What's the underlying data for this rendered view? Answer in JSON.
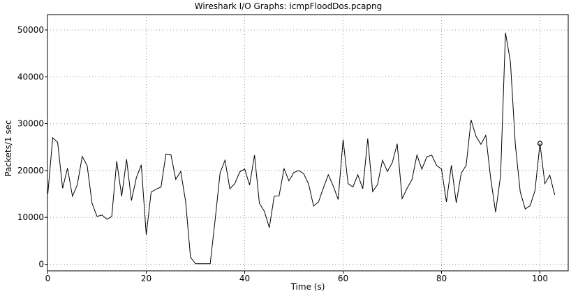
{
  "chart_data": {
    "type": "line",
    "title": "Wireshark I/O Graphs: icmpFloodDos.pcapng",
    "xlabel": "Time (s)",
    "ylabel": "Packets/1 sec",
    "xlim": [
      0,
      104
    ],
    "ylim": [
      0,
      51000
    ],
    "xticks": [
      0,
      20,
      40,
      60,
      80,
      100
    ],
    "yticks": [
      0,
      10000,
      20000,
      30000,
      40000,
      50000
    ],
    "xtick_labels": [
      "0",
      "20",
      "40",
      "60",
      "80",
      "100"
    ],
    "ytick_labels": [
      "0",
      "10000",
      "20000",
      "30000",
      "40000",
      "50000"
    ],
    "grid": true,
    "line_color": "#000000",
    "series": [
      {
        "x": [
          0,
          1,
          2,
          3,
          4,
          5,
          6,
          7,
          8,
          9,
          10,
          11,
          12,
          13,
          14,
          15,
          16,
          17,
          18,
          19,
          20,
          21,
          22,
          23,
          24,
          25,
          26,
          27,
          28,
          29,
          30,
          31,
          32,
          33,
          34,
          35,
          36,
          37,
          38,
          39,
          40,
          41,
          42,
          43,
          44,
          45,
          46,
          47,
          48,
          49,
          50,
          51,
          52,
          53,
          54,
          55,
          56,
          57,
          58,
          59,
          60,
          61,
          62,
          63,
          64,
          65,
          66,
          67,
          68,
          69,
          70,
          71,
          72,
          73,
          74,
          75,
          76,
          77,
          78,
          79,
          80,
          81,
          82,
          83,
          84,
          85,
          86,
          87,
          88,
          89,
          90,
          91,
          92,
          93,
          94,
          95,
          96,
          97,
          98,
          99,
          100,
          101,
          102,
          103
        ],
        "values": [
          15000,
          27000,
          26000,
          16200,
          20500,
          14500,
          17000,
          23000,
          21000,
          13000,
          10200,
          10500,
          9600,
          10200,
          22000,
          14500,
          22400,
          13600,
          18500,
          21200,
          6300,
          15400,
          16000,
          16500,
          23500,
          23400,
          18100,
          19800,
          13400,
          1500,
          100,
          100,
          100,
          100,
          9500,
          19500,
          22200,
          16100,
          17200,
          19700,
          20300,
          16900,
          23300,
          13000,
          11300,
          7800,
          14500,
          14600,
          20400,
          17800,
          19600,
          20000,
          19300,
          17100,
          12400,
          13300,
          16300,
          19100,
          16700,
          13800,
          26600,
          17200,
          16500,
          19100,
          16100,
          26800,
          15500,
          17000,
          22200,
          19800,
          21700,
          25700,
          14000,
          16200,
          18100,
          23300,
          20300,
          22900,
          23300,
          21100,
          20300,
          13300,
          21100,
          13100,
          19400,
          21100,
          30800,
          27300,
          25600,
          27500,
          18200,
          11100,
          18900,
          49400,
          43200,
          25400,
          15400,
          11800,
          12500,
          15700,
          25800,
          17200,
          19000,
          14800
        ]
      }
    ],
    "marker": {
      "x": 100,
      "y": 25800
    }
  }
}
